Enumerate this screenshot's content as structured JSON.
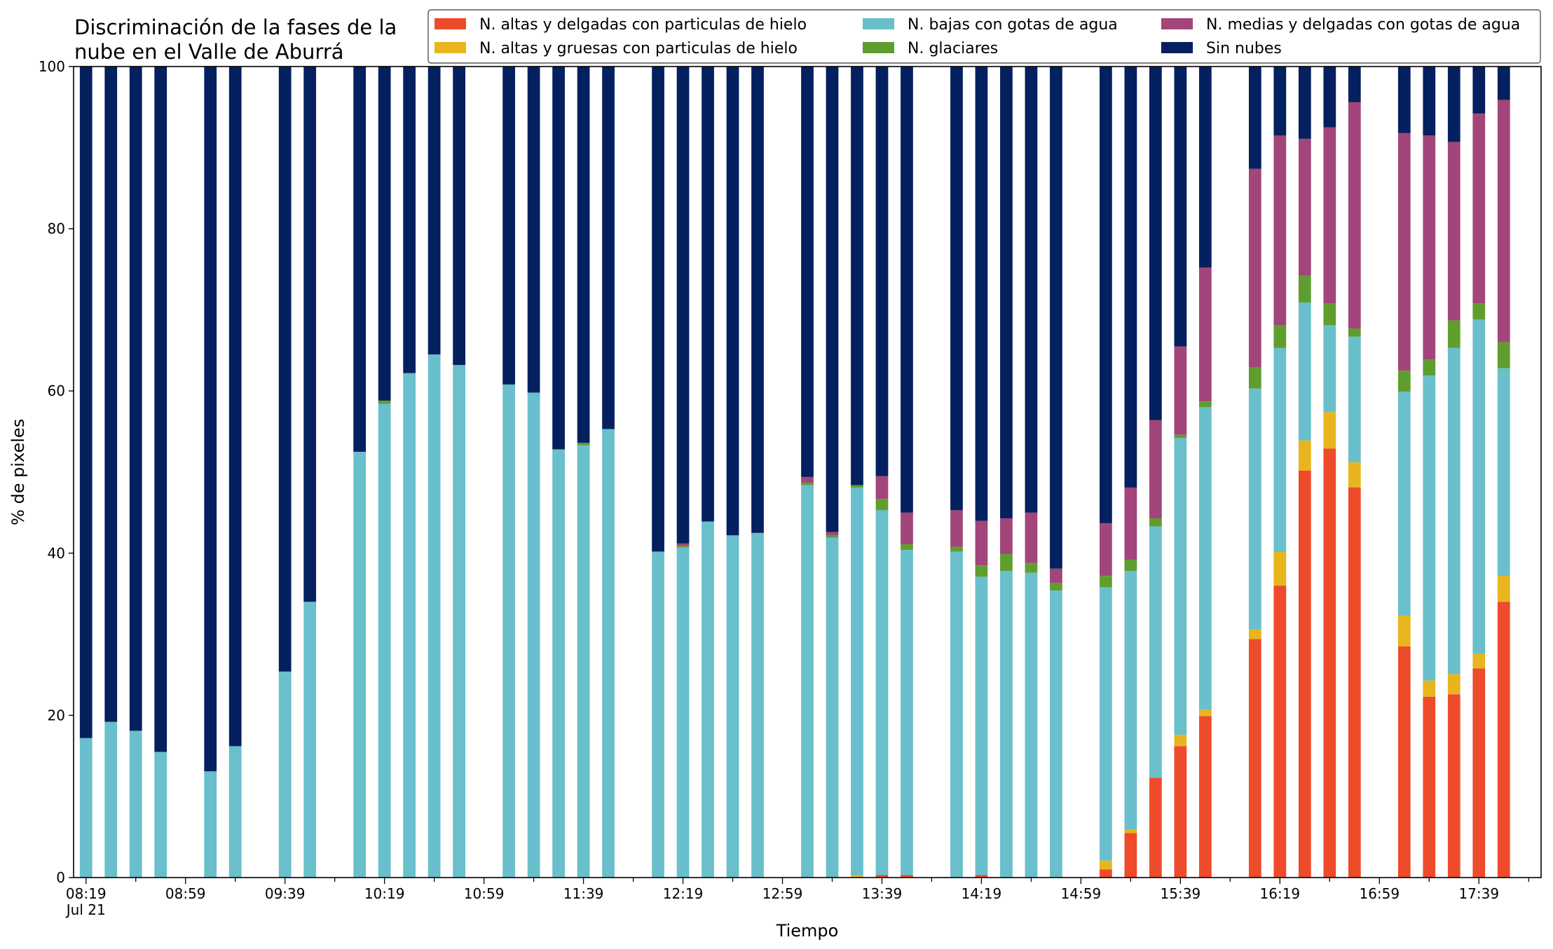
{
  "chart_data": {
    "type": "bar",
    "stacked": true,
    "title_lines": [
      "Discriminación de la fases de la",
      "nube en el Valle de Aburrá"
    ],
    "xlabel": "Tiempo",
    "ylabel": "% de pixeles",
    "ylim": [
      0,
      100
    ],
    "yticks": [
      0,
      20,
      40,
      60,
      80,
      100
    ],
    "x_unit_minutes": 10,
    "x_start": "08:19",
    "xlim": [
      -0.5,
      58.5
    ],
    "xticks": [
      {
        "pos": 0,
        "label": "08:19",
        "sub": "Jul 21"
      },
      {
        "pos": 4,
        "label": "08:59"
      },
      {
        "pos": 8,
        "label": "09:39"
      },
      {
        "pos": 12,
        "label": "10:19"
      },
      {
        "pos": 16,
        "label": "10:59"
      },
      {
        "pos": 20,
        "label": "11:39"
      },
      {
        "pos": 24,
        "label": "12:19"
      },
      {
        "pos": 28,
        "label": "12:59"
      },
      {
        "pos": 32,
        "label": "13:39"
      },
      {
        "pos": 36,
        "label": "14:19"
      },
      {
        "pos": 40,
        "label": "14:59"
      },
      {
        "pos": 44,
        "label": "15:39"
      },
      {
        "pos": 48,
        "label": "16:19"
      },
      {
        "pos": 52,
        "label": "16:59"
      },
      {
        "pos": 56,
        "label": "17:39"
      }
    ],
    "legend_position": "top-right",
    "series": [
      {
        "name": "N. altas y delgadas con particulas de hielo",
        "color": "#ee4b2b"
      },
      {
        "name": "N. altas y gruesas con particulas de hielo",
        "color": "#e8b51e"
      },
      {
        "name": "N. bajas con gotas de agua",
        "color": "#69bfcb"
      },
      {
        "name": "N. glaciares",
        "color": "#5f9e2e"
      },
      {
        "name": "N. medias y delgadas con gotas de agua",
        "color": "#a2457a"
      },
      {
        "name": "Sin nubes",
        "color": "#04205f"
      }
    ],
    "bars": [
      {
        "x": 0,
        "values": [
          0,
          0,
          17.2,
          0,
          0,
          82.8
        ]
      },
      {
        "x": 1,
        "values": [
          0,
          0,
          19.2,
          0,
          0,
          80.8
        ]
      },
      {
        "x": 2,
        "values": [
          0,
          0,
          18.1,
          0,
          0,
          81.9
        ]
      },
      {
        "x": 3,
        "values": [
          0,
          0,
          15.5,
          0,
          0,
          84.5
        ]
      },
      {
        "x": 5,
        "values": [
          0,
          0,
          13.1,
          0,
          0,
          86.9
        ]
      },
      {
        "x": 6,
        "values": [
          0,
          0,
          16.2,
          0,
          0,
          83.8
        ]
      },
      {
        "x": 8,
        "values": [
          0,
          0,
          25.4,
          0,
          0,
          74.6
        ]
      },
      {
        "x": 9,
        "values": [
          0,
          0,
          34.0,
          0,
          0,
          66.0
        ]
      },
      {
        "x": 11,
        "values": [
          0,
          0,
          52.5,
          0,
          0,
          47.5
        ]
      },
      {
        "x": 12,
        "values": [
          0,
          0,
          58.4,
          0.4,
          0,
          41.2
        ]
      },
      {
        "x": 13,
        "values": [
          0,
          0,
          62.2,
          0,
          0,
          37.8
        ]
      },
      {
        "x": 14,
        "values": [
          0,
          0,
          64.5,
          0,
          0,
          35.5
        ]
      },
      {
        "x": 15,
        "values": [
          0,
          0,
          63.2,
          0,
          0,
          36.8
        ]
      },
      {
        "x": 17,
        "values": [
          0,
          0,
          60.8,
          0,
          0,
          39.2
        ]
      },
      {
        "x": 18,
        "values": [
          0,
          0,
          59.8,
          0,
          0,
          40.2
        ]
      },
      {
        "x": 19,
        "values": [
          0,
          0,
          52.8,
          0,
          0,
          47.2
        ]
      },
      {
        "x": 20,
        "values": [
          0,
          0,
          53.3,
          0.3,
          0,
          46.4
        ]
      },
      {
        "x": 21,
        "values": [
          0,
          0,
          55.3,
          0,
          0,
          44.7
        ]
      },
      {
        "x": 23,
        "values": [
          0,
          0,
          40.2,
          0,
          0,
          59.8
        ]
      },
      {
        "x": 24,
        "values": [
          0,
          0,
          40.7,
          0.2,
          0.3,
          58.8
        ]
      },
      {
        "x": 25,
        "values": [
          0,
          0,
          43.9,
          0,
          0,
          56.1
        ]
      },
      {
        "x": 26,
        "values": [
          0,
          0,
          42.2,
          0,
          0,
          57.8
        ]
      },
      {
        "x": 27,
        "values": [
          0,
          0,
          42.5,
          0,
          0,
          57.5
        ]
      },
      {
        "x": 29,
        "values": [
          0,
          0,
          48.4,
          0.3,
          0.7,
          50.6
        ]
      },
      {
        "x": 30,
        "values": [
          0,
          0,
          41.9,
          0.3,
          0.4,
          57.4
        ]
      },
      {
        "x": 31,
        "values": [
          0,
          0.3,
          47.8,
          0.3,
          0,
          51.6
        ]
      },
      {
        "x": 32,
        "values": [
          0.3,
          0,
          45.0,
          1.4,
          2.8,
          50.5
        ]
      },
      {
        "x": 33,
        "values": [
          0.3,
          0,
          40.1,
          0.7,
          3.9,
          55.0
        ]
      },
      {
        "x": 35,
        "values": [
          0,
          0,
          40.2,
          0.6,
          4.5,
          54.7
        ]
      },
      {
        "x": 36,
        "values": [
          0.3,
          0,
          36.8,
          1.4,
          5.5,
          56.0
        ]
      },
      {
        "x": 37,
        "values": [
          0,
          0,
          37.8,
          2.1,
          4.4,
          55.7
        ]
      },
      {
        "x": 38,
        "values": [
          0,
          0,
          37.6,
          1.2,
          6.2,
          55.0
        ]
      },
      {
        "x": 39,
        "values": [
          0,
          0,
          35.4,
          0.9,
          1.8,
          61.9
        ]
      },
      {
        "x": 41,
        "values": [
          1.0,
          1.1,
          33.7,
          1.4,
          6.5,
          56.3
        ]
      },
      {
        "x": 42,
        "values": [
          5.5,
          0.4,
          31.9,
          1.4,
          8.9,
          51.9
        ]
      },
      {
        "x": 43,
        "values": [
          12.3,
          0,
          31.0,
          1.0,
          12.1,
          43.6
        ]
      },
      {
        "x": 44,
        "values": [
          16.2,
          1.4,
          36.6,
          0.4,
          10.9,
          34.5
        ]
      },
      {
        "x": 45,
        "values": [
          19.9,
          0.8,
          37.3,
          0.7,
          16.5,
          24.8
        ]
      },
      {
        "x": 47,
        "values": [
          29.4,
          1.2,
          29.7,
          2.6,
          24.5,
          12.6
        ]
      },
      {
        "x": 48,
        "values": [
          36.0,
          4.2,
          25.1,
          2.8,
          23.4,
          8.5
        ]
      },
      {
        "x": 49,
        "values": [
          50.2,
          3.7,
          17.0,
          3.3,
          16.9,
          8.9
        ]
      },
      {
        "x": 50,
        "values": [
          52.9,
          4.5,
          10.7,
          2.7,
          21.7,
          7.5
        ]
      },
      {
        "x": 51,
        "values": [
          48.1,
          3.1,
          15.5,
          1.0,
          27.9,
          4.4
        ]
      },
      {
        "x": 53,
        "values": [
          28.5,
          3.8,
          27.6,
          2.6,
          29.3,
          8.2
        ]
      },
      {
        "x": 54,
        "values": [
          22.3,
          2.0,
          37.6,
          2.0,
          27.6,
          8.5
        ]
      },
      {
        "x": 55,
        "values": [
          22.6,
          2.5,
          40.2,
          3.4,
          22.0,
          9.3
        ]
      },
      {
        "x": 56,
        "values": [
          25.8,
          1.8,
          41.2,
          2.0,
          23.4,
          5.8
        ]
      },
      {
        "x": 57,
        "values": [
          34.0,
          3.2,
          25.6,
          3.2,
          29.9,
          4.1
        ]
      }
    ]
  }
}
